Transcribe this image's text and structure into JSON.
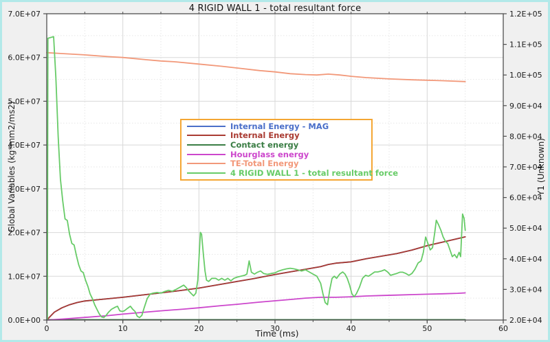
{
  "window": {
    "title": "4 RIGID WALL 1 - total resultant force"
  },
  "colors": {
    "frame_border": "#b2e9e9",
    "figure_bg": "#f0f0f0",
    "plot_bg": "#ffffff",
    "grid_major": "#d8d8d8",
    "grid_minor": "#e6e6e6",
    "axis": "#4d4d4d",
    "tick_text": "#1a1a1a",
    "legend_border": "#f4a633",
    "legend_bg": "#ffffff"
  },
  "chart_data": {
    "type": "line",
    "title": "4 RIGID WALL 1 - total resultant force",
    "xlabel": "Time (ms)",
    "ylabel_left": "Global Variables (kg*mm2/ms2)",
    "ylabel_right": "Y1 (Unknown)",
    "xlim": [
      0,
      60
    ],
    "ylim_left": [
      0,
      70000000.0
    ],
    "ylim_right": [
      20000.0,
      120000.0
    ],
    "x_major_ticks": [
      0,
      10,
      20,
      30,
      40,
      50,
      60
    ],
    "x_tick_labels": [
      "0",
      "10",
      "20",
      "30",
      "40",
      "50",
      "60"
    ],
    "x_minor_step": 5,
    "y_left_tick_values": [
      0,
      10000000.0,
      20000000.0,
      30000000.0,
      40000000.0,
      50000000.0,
      60000000.0,
      70000000.0
    ],
    "y_left_tick_labels": [
      "0.0E+00",
      "1.0E+07",
      "2.0E+07",
      "3.0E+07",
      "4.0E+07",
      "5.0E+07",
      "6.0E+07",
      "7.0E+07"
    ],
    "y_left_minor_step": 5000000.0,
    "y_right_tick_values": [
      20000.0,
      30000.0,
      40000.0,
      50000.0,
      60000.0,
      70000.0,
      80000.0,
      90000.0,
      100000.0,
      110000.0,
      120000.0
    ],
    "y_right_tick_labels": [
      "2.0E+04",
      "3.0E+04",
      "4.0E+04",
      "5.0E+04",
      "6.0E+04",
      "7.0E+04",
      "8.0E+04",
      "9.0E+04",
      "1.0E+05",
      "1.1E+05",
      "1.2E+05"
    ],
    "grid": true,
    "legend_position": "upper-center-inside",
    "series": [
      {
        "name": "Internal Energy - MAG",
        "color": "#4a6fc9",
        "axis": "left",
        "points": [
          [
            0,
            0
          ],
          [
            0.5,
            900000.0
          ],
          [
            1,
            1800000.0
          ],
          [
            2,
            2800000.0
          ],
          [
            3,
            3500000.0
          ],
          [
            4,
            4000000.0
          ],
          [
            5,
            4350000.0
          ],
          [
            7,
            4700000.0
          ],
          [
            10,
            5200000.0
          ],
          [
            13,
            5800000.0
          ],
          [
            15,
            6200000.0
          ],
          [
            17,
            6600000.0
          ],
          [
            20,
            7300000.0
          ],
          [
            23,
            8200000.0
          ],
          [
            25,
            8800000.0
          ],
          [
            27,
            9400000.0
          ],
          [
            30,
            10400000.0
          ],
          [
            32,
            11000000.0
          ],
          [
            34,
            11600000.0
          ],
          [
            36,
            12200000.0
          ],
          [
            37,
            12700000.0
          ],
          [
            38,
            13000000.0
          ],
          [
            40,
            13300000.0
          ],
          [
            42,
            14000000.0
          ],
          [
            44,
            14600000.0
          ],
          [
            46,
            15200000.0
          ],
          [
            48,
            16000000.0
          ],
          [
            50,
            17000000.0
          ],
          [
            52,
            17800000.0
          ],
          [
            54,
            18600000.0
          ],
          [
            55,
            19000000.0
          ]
        ]
      },
      {
        "name": "Internal Energy",
        "color": "#a93a31",
        "axis": "left",
        "points": [
          [
            0,
            0
          ],
          [
            0.5,
            900000.0
          ],
          [
            1,
            1800000.0
          ],
          [
            2,
            2800000.0
          ],
          [
            3,
            3500000.0
          ],
          [
            4,
            4000000.0
          ],
          [
            5,
            4350000.0
          ],
          [
            7,
            4700000.0
          ],
          [
            10,
            5200000.0
          ],
          [
            13,
            5800000.0
          ],
          [
            15,
            6200000.0
          ],
          [
            17,
            6600000.0
          ],
          [
            20,
            7300000.0
          ],
          [
            23,
            8200000.0
          ],
          [
            25,
            8800000.0
          ],
          [
            27,
            9400000.0
          ],
          [
            30,
            10400000.0
          ],
          [
            32,
            11000000.0
          ],
          [
            34,
            11600000.0
          ],
          [
            36,
            12200000.0
          ],
          [
            37,
            12700000.0
          ],
          [
            38,
            13000000.0
          ],
          [
            40,
            13300000.0
          ],
          [
            42,
            14000000.0
          ],
          [
            44,
            14600000.0
          ],
          [
            46,
            15200000.0
          ],
          [
            48,
            16000000.0
          ],
          [
            50,
            17000000.0
          ],
          [
            52,
            17800000.0
          ],
          [
            54,
            18600000.0
          ],
          [
            55,
            19000000.0
          ]
        ]
      },
      {
        "name": "Contact energy",
        "color": "#3a7d44",
        "axis": "left",
        "points": [
          [
            0,
            80000.0
          ],
          [
            10,
            80000.0
          ],
          [
            20,
            80000.0
          ],
          [
            30,
            80000.0
          ],
          [
            40,
            80000.0
          ],
          [
            55,
            80000.0
          ]
        ]
      },
      {
        "name": "Hourglass energy",
        "color": "#cc46cc",
        "axis": "left",
        "points": [
          [
            0,
            0
          ],
          [
            2,
            200000.0
          ],
          [
            5,
            600000.0
          ],
          [
            8,
            1000000.0
          ],
          [
            10,
            1350000.0
          ],
          [
            13,
            1800000.0
          ],
          [
            15,
            2100000.0
          ],
          [
            18,
            2500000.0
          ],
          [
            20,
            2800000.0
          ],
          [
            23,
            3300000.0
          ],
          [
            25,
            3600000.0
          ],
          [
            28,
            4100000.0
          ],
          [
            30,
            4400000.0
          ],
          [
            32,
            4700000.0
          ],
          [
            34,
            5000000.0
          ],
          [
            36,
            5200000.0
          ],
          [
            38,
            5200000.0
          ],
          [
            40,
            5300000.0
          ],
          [
            42,
            5500000.0
          ],
          [
            44,
            5600000.0
          ],
          [
            46,
            5700000.0
          ],
          [
            48,
            5800000.0
          ],
          [
            50,
            5900000.0
          ],
          [
            52,
            6000000.0
          ],
          [
            54,
            6100000.0
          ],
          [
            55,
            6200000.0
          ]
        ]
      },
      {
        "name": "TE-Total Energy",
        "color": "#f29879",
        "axis": "left",
        "points": [
          [
            0,
            61100000.0
          ],
          [
            2,
            60900000.0
          ],
          [
            5,
            60600000.0
          ],
          [
            8,
            60200000.0
          ],
          [
            10,
            60000000.0
          ],
          [
            13,
            59500000.0
          ],
          [
            15,
            59200000.0
          ],
          [
            17,
            59000000.0
          ],
          [
            20,
            58500000.0
          ],
          [
            23,
            58000000.0
          ],
          [
            25,
            57600000.0
          ],
          [
            28,
            57000000.0
          ],
          [
            30,
            56700000.0
          ],
          [
            32,
            56300000.0
          ],
          [
            34,
            56100000.0
          ],
          [
            35.5,
            56000000.0
          ],
          [
            37,
            56200000.0
          ],
          [
            38.5,
            56000000.0
          ],
          [
            40,
            55700000.0
          ],
          [
            42,
            55400000.0
          ],
          [
            45,
            55100000.0
          ],
          [
            48,
            54900000.0
          ],
          [
            50,
            54800000.0
          ],
          [
            52,
            54700000.0
          ],
          [
            55,
            54500000.0
          ]
        ]
      },
      {
        "name": "4 RIGID WALL 1 - total resultant force",
        "color": "#67cb67",
        "axis": "right",
        "points": [
          [
            0.08,
            20000.0
          ],
          [
            0.15,
            112000.0
          ],
          [
            0.9,
            112500.0
          ],
          [
            1.2,
            99000.0
          ],
          [
            1.5,
            80000.0
          ],
          [
            1.8,
            66000.0
          ],
          [
            2.1,
            59000.0
          ],
          [
            2.4,
            53000.0
          ],
          [
            2.7,
            52500.0
          ],
          [
            3.0,
            48000.0
          ],
          [
            3.3,
            45000.0
          ],
          [
            3.6,
            44500.0
          ],
          [
            3.9,
            41000.0
          ],
          [
            4.2,
            38000.0
          ],
          [
            4.5,
            36000.0
          ],
          [
            4.8,
            35500.0
          ],
          [
            5.1,
            33000.0
          ],
          [
            5.4,
            31000.0
          ],
          [
            5.7,
            28500.0
          ],
          [
            6.0,
            27000.0
          ],
          [
            6.3,
            25000.0
          ],
          [
            6.6,
            23500.0
          ],
          [
            6.9,
            22000.0
          ],
          [
            7.2,
            21000.0
          ],
          [
            7.5,
            20800.0
          ],
          [
            7.8,
            21500.0
          ],
          [
            8.1,
            22500.0
          ],
          [
            8.5,
            23500.0
          ],
          [
            9.0,
            24200.0
          ],
          [
            9.3,
            24500.0
          ],
          [
            9.6,
            23000.0
          ],
          [
            9.9,
            22800.0
          ],
          [
            10.2,
            23000.0
          ],
          [
            10.6,
            23800.0
          ],
          [
            11.0,
            24500.0
          ],
          [
            11.3,
            23500.0
          ],
          [
            11.6,
            22800.0
          ],
          [
            11.9,
            21200.0
          ],
          [
            12.2,
            20800.0
          ],
          [
            12.5,
            21500.0
          ],
          [
            12.8,
            24000.0
          ],
          [
            13.2,
            27000.0
          ],
          [
            13.6,
            28500.0
          ],
          [
            14.0,
            28800.0
          ],
          [
            14.5,
            29000.0
          ],
          [
            15.0,
            28800.0
          ],
          [
            15.5,
            29300.0
          ],
          [
            16.0,
            29700.0
          ],
          [
            16.5,
            29400.0
          ],
          [
            17.0,
            30000.0
          ],
          [
            17.5,
            30700.0
          ],
          [
            18.0,
            31400.0
          ],
          [
            18.3,
            30700.0
          ],
          [
            18.6,
            29700.0
          ],
          [
            19.0,
            28600.0
          ],
          [
            19.3,
            27900.0
          ],
          [
            19.6,
            28800.0
          ],
          [
            19.85,
            33000.0
          ],
          [
            20.05,
            42000.0
          ],
          [
            20.2,
            48600.0
          ],
          [
            20.35,
            48000.0
          ],
          [
            20.6,
            41000.0
          ],
          [
            20.8,
            36000.0
          ],
          [
            21.0,
            33000.0
          ],
          [
            21.3,
            32600.0
          ],
          [
            21.7,
            33600.0
          ],
          [
            22.2,
            33600.0
          ],
          [
            22.6,
            33000.0
          ],
          [
            23.0,
            33600.0
          ],
          [
            23.4,
            33000.0
          ],
          [
            23.8,
            33600.0
          ],
          [
            24.2,
            32800.0
          ],
          [
            24.6,
            33600.0
          ],
          [
            25.0,
            34000.0
          ],
          [
            25.5,
            34300.0
          ],
          [
            26.0,
            34600.0
          ],
          [
            26.3,
            35000.0
          ],
          [
            26.6,
            39300.0
          ],
          [
            26.9,
            35600.0
          ],
          [
            27.3,
            35000.0
          ],
          [
            27.7,
            35600.0
          ],
          [
            28.1,
            36000.0
          ],
          [
            28.5,
            35200.0
          ],
          [
            29.0,
            34900.0
          ],
          [
            29.5,
            35200.0
          ],
          [
            30.0,
            35400.0
          ],
          [
            30.5,
            36000.0
          ],
          [
            31.0,
            36400.0
          ],
          [
            31.5,
            36700.0
          ],
          [
            32.0,
            36900.0
          ],
          [
            32.5,
            36700.0
          ],
          [
            33.0,
            36400.0
          ],
          [
            33.5,
            36000.0
          ],
          [
            34.0,
            36400.0
          ],
          [
            34.5,
            35700.0
          ],
          [
            35.0,
            35000.0
          ],
          [
            35.5,
            34300.0
          ],
          [
            36.0,
            32000.0
          ],
          [
            36.3,
            28600.0
          ],
          [
            36.6,
            25700.0
          ],
          [
            36.9,
            25000.0
          ],
          [
            37.2,
            30000.0
          ],
          [
            37.5,
            33600.0
          ],
          [
            37.8,
            34300.0
          ],
          [
            38.1,
            33600.0
          ],
          [
            38.5,
            35000.0
          ],
          [
            38.9,
            35700.0
          ],
          [
            39.2,
            35000.0
          ],
          [
            39.5,
            33600.0
          ],
          [
            39.8,
            31400.0
          ],
          [
            40.1,
            28600.0
          ],
          [
            40.4,
            27600.0
          ],
          [
            40.7,
            28600.0
          ],
          [
            41.1,
            30700.0
          ],
          [
            41.5,
            33600.0
          ],
          [
            41.9,
            34600.0
          ],
          [
            42.3,
            34300.0
          ],
          [
            42.7,
            35000.0
          ],
          [
            43.1,
            35700.0
          ],
          [
            43.5,
            35700.0
          ],
          [
            44.0,
            36000.0
          ],
          [
            44.4,
            36400.0
          ],
          [
            44.8,
            35700.0
          ],
          [
            45.2,
            34600.0
          ],
          [
            45.6,
            34900.0
          ],
          [
            46.0,
            35200.0
          ],
          [
            46.4,
            35600.0
          ],
          [
            46.8,
            35600.0
          ],
          [
            47.2,
            35200.0
          ],
          [
            47.6,
            34600.0
          ],
          [
            48.0,
            35200.0
          ],
          [
            48.4,
            36600.0
          ],
          [
            48.8,
            38600.0
          ],
          [
            49.2,
            39300.0
          ],
          [
            49.5,
            42100.0
          ],
          [
            49.8,
            47100.0
          ],
          [
            50.1,
            45000.0
          ],
          [
            50.4,
            42900.0
          ],
          [
            50.7,
            43600.0
          ],
          [
            51.0,
            48600.0
          ],
          [
            51.2,
            52600.0
          ],
          [
            51.5,
            51100.0
          ],
          [
            51.8,
            49300.0
          ],
          [
            52.1,
            47100.0
          ],
          [
            52.4,
            45700.0
          ],
          [
            52.7,
            45000.0
          ],
          [
            53.0,
            42900.0
          ],
          [
            53.3,
            40700.0
          ],
          [
            53.6,
            41400.0
          ],
          [
            53.9,
            40300.0
          ],
          [
            54.2,
            42100.0
          ],
          [
            54.4,
            40700.0
          ],
          [
            54.65,
            54600.0
          ],
          [
            54.85,
            53200.0
          ],
          [
            55.0,
            49300.0
          ]
        ]
      }
    ]
  }
}
